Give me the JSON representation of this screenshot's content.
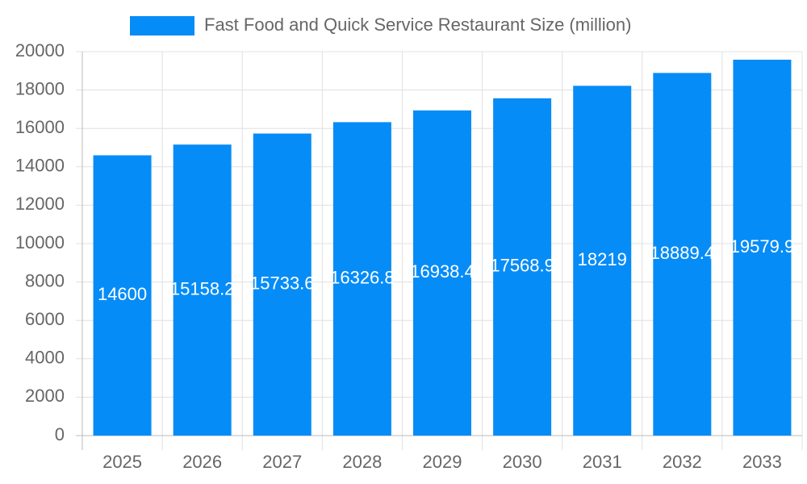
{
  "chart_data": {
    "type": "bar",
    "categories": [
      "2025",
      "2026",
      "2027",
      "2028",
      "2029",
      "2030",
      "2031",
      "2032",
      "2033"
    ],
    "series": [
      {
        "name": "Fast Food and Quick Service Restaurant Size (million)",
        "color": "#068cf7",
        "values": [
          14600,
          15158.2,
          15733.6,
          16326.8,
          16938.4,
          17568.9,
          18219.0,
          18889.4,
          19579.9
        ]
      }
    ],
    "ylim": [
      0,
      20000
    ],
    "yticks": [
      0,
      2000,
      4000,
      6000,
      8000,
      10000,
      12000,
      14000,
      16000,
      18000,
      20000
    ],
    "grid": true,
    "legend": "top"
  }
}
